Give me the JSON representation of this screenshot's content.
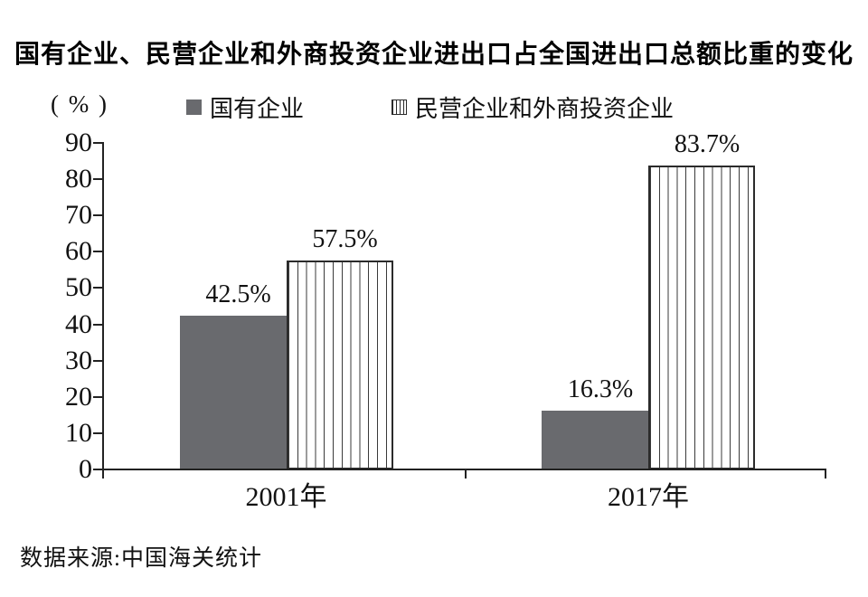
{
  "title": "国有企业、民营企业和外商投资企业进出口占全国进出口总额比重的变化",
  "unit_label": "( % )",
  "legend": [
    {
      "label": "国有企业",
      "swatch": "solid-gray-square"
    },
    {
      "label": "民营企业和外商投资企业",
      "swatch": "striped-square"
    }
  ],
  "source": "数据来源:中国海关统计",
  "colors": {
    "solid_bar": "#696a6e",
    "stripe_line": "#3a3a3a",
    "axis": "#222222",
    "text": "#111111"
  },
  "chart_data": {
    "type": "bar",
    "categories": [
      "2001年",
      "2017年"
    ],
    "series": [
      {
        "name": "国有企业",
        "style": "solid",
        "values": [
          42.5,
          16.3
        ],
        "labels": [
          "42.5%",
          "16.3%"
        ]
      },
      {
        "name": "民营企业和外商投资企业",
        "style": "striped",
        "values": [
          57.5,
          83.7
        ],
        "labels": [
          "57.5%",
          "83.7%"
        ]
      }
    ],
    "title": "国有企业、民营企业和外商投资企业进出口占全国进出口总额比重的变化",
    "xlabel": "",
    "ylabel": "( % )",
    "ylim": [
      0,
      90
    ],
    "yticks": [
      0,
      10,
      20,
      30,
      40,
      50,
      60,
      70,
      80,
      90
    ],
    "grid": false,
    "legend_position": "top"
  }
}
